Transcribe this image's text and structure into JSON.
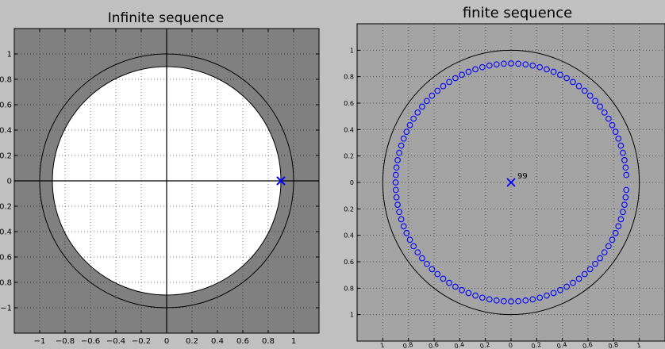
{
  "chart_data": [
    {
      "type": "scatter",
      "title": "Infinite sequence",
      "xlim": [
        -1.2,
        1.2
      ],
      "ylim": [
        -1.2,
        1.2
      ],
      "xticks": [
        "−1",
        "−0.8",
        "−0.6",
        "−0.4",
        "−0.2",
        "0",
        "0.2",
        "0.4",
        "0.6",
        "0.8",
        "1"
      ],
      "yticks": [
        "−1",
        "0.8",
        "0.6",
        "0.4",
        "0.2",
        "0",
        "0.2",
        "0.4",
        "0.6",
        "0.8",
        "1"
      ],
      "ytick_values": [
        -1,
        -0.8,
        -0.6,
        -0.4,
        -0.2,
        0,
        0.2,
        0.4,
        0.6,
        0.8,
        1
      ],
      "xtick_values": [
        -1,
        -0.8,
        -0.6,
        -0.4,
        -0.2,
        0,
        0.2,
        0.4,
        0.6,
        0.8,
        1
      ],
      "grid": true,
      "unit_circle_radius": 1,
      "roc_inner_radius": 0.9,
      "poles": [
        {
          "x": 0.9,
          "y": 0
        }
      ],
      "colors": {
        "plot_bg": "#808080",
        "roc_fill": "#ffffff",
        "pole": "#0000ff",
        "circle": "#000000"
      }
    },
    {
      "type": "scatter",
      "title": "finite sequence",
      "xlim": [
        -1.2,
        1.2
      ],
      "ylim": [
        -1.2,
        1.2
      ],
      "xticks": [
        "1",
        "0.8",
        "0.6",
        "0.4",
        "0.2",
        "0",
        "0.2",
        "0.4",
        "0.6",
        "0.8",
        "1"
      ],
      "xtick_values": [
        -1,
        -0.8,
        -0.6,
        -0.4,
        -0.2,
        0,
        0.2,
        0.4,
        0.6,
        0.8,
        1
      ],
      "yticks": [
        "1",
        "0.8",
        "0.6",
        "0.4",
        "0.2",
        "0",
        "0.2",
        "0.4",
        "0.6",
        "0.8",
        "1"
      ],
      "ytick_values": [
        1,
        0.8,
        0.6,
        0.4,
        0.2,
        0,
        -0.2,
        -0.4,
        -0.6,
        -0.8,
        -1
      ],
      "grid": true,
      "unit_circle_radius": 1,
      "zeros": {
        "count": 99,
        "radius": 0.9,
        "skip_angle_deg": 0
      },
      "poles": [
        {
          "x": 0,
          "y": 0,
          "label": "99"
        }
      ],
      "colors": {
        "plot_bg": "#a4a4a4",
        "zero": "#0000ff",
        "pole": "#0000ff",
        "circle": "#000000"
      }
    }
  ]
}
